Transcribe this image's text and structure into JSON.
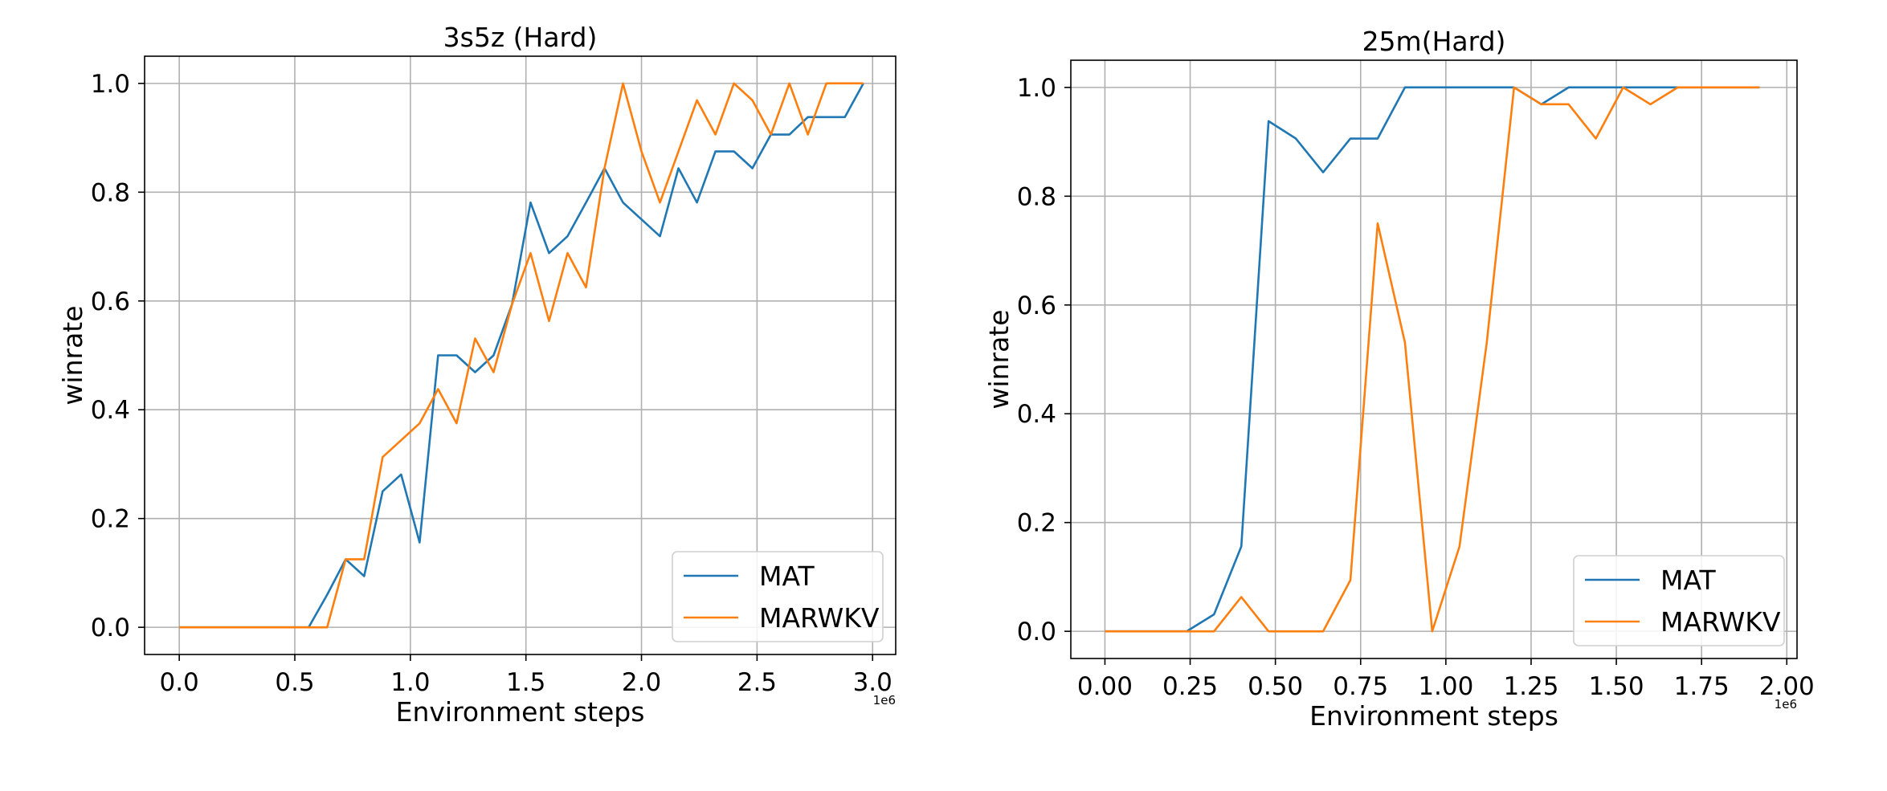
{
  "chart_data": [
    {
      "type": "line",
      "title": "3s5z (Hard)",
      "xlabel": "Environment steps",
      "ylabel": "winrate",
      "x_offset_text": "1e6",
      "xlim": [
        -0.15,
        3.1
      ],
      "ylim": [
        -0.05,
        1.05
      ],
      "xticks": [
        0.0,
        0.5,
        1.0,
        1.5,
        2.0,
        2.5,
        3.0
      ],
      "xtick_labels": [
        "0.0",
        "0.5",
        "1.0",
        "1.5",
        "2.0",
        "2.5",
        "3.0"
      ],
      "yticks": [
        0.0,
        0.2,
        0.4,
        0.6,
        0.8,
        1.0
      ],
      "ytick_labels": [
        "0.0",
        "0.2",
        "0.4",
        "0.6",
        "0.8",
        "1.0"
      ],
      "grid": true,
      "legend_position": "lower-right",
      "series": [
        {
          "name": "MAT",
          "color": "#1f77b4",
          "x": [
            0.0,
            0.08,
            0.16,
            0.24,
            0.32,
            0.4,
            0.48,
            0.56,
            0.64,
            0.72,
            0.8,
            0.88,
            0.96,
            1.04,
            1.12,
            1.2,
            1.28,
            1.36,
            1.44,
            1.52,
            1.6,
            1.68,
            1.76,
            1.84,
            1.92,
            2.0,
            2.08,
            2.16,
            2.24,
            2.32,
            2.4,
            2.48,
            2.56,
            2.64,
            2.72,
            2.8,
            2.88,
            2.96
          ],
          "y": [
            0,
            0,
            0,
            0,
            0,
            0,
            0,
            0,
            0.06,
            0.125,
            0.094,
            0.25,
            0.281,
            0.156,
            0.5,
            0.5,
            0.469,
            0.5,
            0.594,
            0.781,
            0.688,
            0.719,
            0.781,
            0.844,
            0.781,
            0.75,
            0.719,
            0.844,
            0.781,
            0.875,
            0.875,
            0.844,
            0.906,
            0.906,
            0.938,
            0.938,
            0.938,
            1.0
          ]
        },
        {
          "name": "MARWKV",
          "color": "#ff7f0e",
          "x": [
            0.0,
            0.08,
            0.16,
            0.24,
            0.32,
            0.4,
            0.48,
            0.56,
            0.64,
            0.72,
            0.8,
            0.88,
            0.96,
            1.04,
            1.12,
            1.2,
            1.28,
            1.36,
            1.44,
            1.52,
            1.6,
            1.68,
            1.76,
            1.84,
            1.92,
            2.0,
            2.08,
            2.16,
            2.24,
            2.32,
            2.4,
            2.48,
            2.56,
            2.64,
            2.72,
            2.8,
            2.88,
            2.96
          ],
          "y": [
            0,
            0,
            0,
            0,
            0,
            0,
            0,
            0,
            0,
            0.125,
            0.125,
            0.313,
            0.344,
            0.375,
            0.438,
            0.375,
            0.531,
            0.469,
            0.594,
            0.688,
            0.563,
            0.688,
            0.625,
            0.844,
            1.0,
            0.875,
            0.781,
            0.875,
            0.969,
            0.906,
            1.0,
            0.969,
            0.906,
            1.0,
            0.906,
            1.0,
            1.0,
            1.0
          ]
        }
      ]
    },
    {
      "type": "line",
      "title": "25m(Hard)",
      "xlabel": "Environment steps",
      "ylabel": "winrate",
      "x_offset_text": "1e6",
      "xlim": [
        -0.1,
        2.03
      ],
      "ylim": [
        -0.05,
        1.05
      ],
      "xticks": [
        0.0,
        0.25,
        0.5,
        0.75,
        1.0,
        1.25,
        1.5,
        1.75,
        2.0
      ],
      "xtick_labels": [
        "0.00",
        "0.25",
        "0.50",
        "0.75",
        "1.00",
        "1.25",
        "1.50",
        "1.75",
        "2.00"
      ],
      "yticks": [
        0.0,
        0.2,
        0.4,
        0.6,
        0.8,
        1.0
      ],
      "ytick_labels": [
        "0.0",
        "0.2",
        "0.4",
        "0.6",
        "0.8",
        "1.0"
      ],
      "grid": true,
      "legend_position": "lower-right",
      "series": [
        {
          "name": "MAT",
          "color": "#1f77b4",
          "x": [
            0.0,
            0.08,
            0.16,
            0.24,
            0.32,
            0.4,
            0.48,
            0.56,
            0.64,
            0.72,
            0.8,
            0.88,
            0.96,
            1.04,
            1.12,
            1.2,
            1.28,
            1.36,
            1.44,
            1.52,
            1.6,
            1.68,
            1.76,
            1.84,
            1.92
          ],
          "y": [
            0,
            0,
            0,
            0,
            0.031,
            0.156,
            0.938,
            0.906,
            0.844,
            0.906,
            0.906,
            1.0,
            1.0,
            1.0,
            1.0,
            1.0,
            0.969,
            1.0,
            1.0,
            1.0,
            1.0,
            1.0,
            1.0,
            1.0,
            1.0
          ]
        },
        {
          "name": "MARWKV",
          "color": "#ff7f0e",
          "x": [
            0.0,
            0.08,
            0.16,
            0.24,
            0.32,
            0.4,
            0.48,
            0.56,
            0.64,
            0.72,
            0.8,
            0.88,
            0.96,
            1.04,
            1.12,
            1.2,
            1.28,
            1.36,
            1.44,
            1.52,
            1.6,
            1.68,
            1.76,
            1.84,
            1.92
          ],
          "y": [
            0,
            0,
            0,
            0,
            0,
            0.063,
            0,
            0,
            0,
            0.094,
            0.75,
            0.531,
            0,
            0.156,
            0.531,
            1.0,
            0.969,
            0.969,
            0.906,
            1.0,
            0.969,
            1.0,
            1.0,
            1.0,
            1.0
          ]
        }
      ]
    }
  ]
}
